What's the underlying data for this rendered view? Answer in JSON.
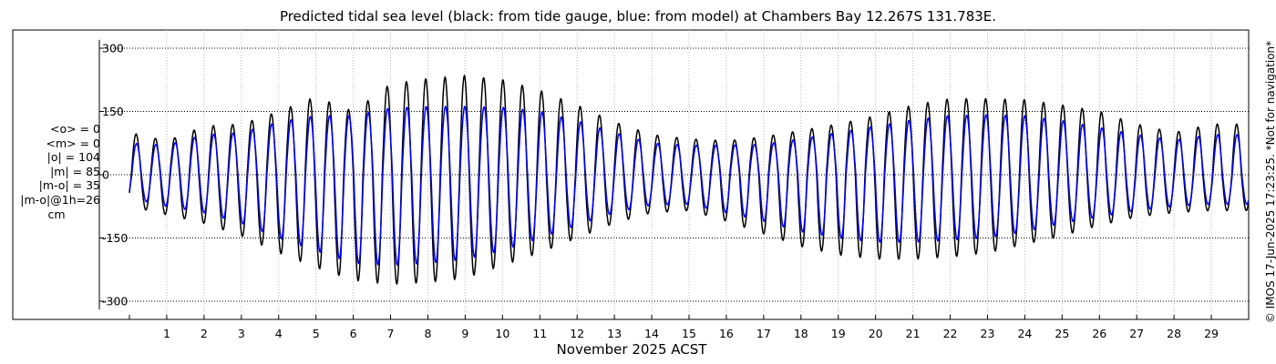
{
  "chart_data": {
    "type": "line",
    "title": "Predicted tidal sea level (black: from tide gauge, blue: from model) at Chambers Bay 12.267S 131.783E.",
    "xlabel": "November 2025 ACST",
    "ylabel": "",
    "ylim": [
      -320,
      320
    ],
    "yticks": [
      300,
      150,
      0,
      -150,
      -300
    ],
    "ytick_labels": [
      "300",
      "150",
      "0",
      "-150",
      "-300"
    ],
    "xlim": [
      0.0,
      30.0
    ],
    "xticks": [
      1,
      2,
      3,
      4,
      5,
      6,
      7,
      8,
      9,
      10,
      11,
      12,
      13,
      14,
      15,
      16,
      17,
      18,
      19,
      20,
      21,
      22,
      23,
      24,
      25,
      26,
      27,
      28,
      29
    ],
    "grid": true,
    "series": [
      {
        "color": "#000000",
        "peaks_highs": [
          100,
          80,
          115,
          120,
          150,
          185,
          150,
          215,
          228,
          235,
          225,
          200,
          165,
          125,
          95,
          85,
          80,
          90,
          105,
          120,
          140,
          165,
          180,
          180,
          178,
          165,
          150,
          120,
          100,
          120
        ],
        "peaks_lows": [
          -75,
          -95,
          -115,
          -145,
          -185,
          -220,
          -250,
          -260,
          -255,
          -245,
          -215,
          -185,
          -150,
          -115,
          -90,
          -85,
          -110,
          -140,
          -170,
          -190,
          -200,
          -200,
          -195,
          -185,
          -165,
          -145,
          -120,
          -100,
          -90,
          -85
        ]
      },
      {
        "color": "#0000ff",
        "peaks_highs": [
          75,
          70,
          95,
          100,
          125,
          140,
          140,
          158,
          162,
          162,
          160,
          150,
          128,
          100,
          75,
          70,
          70,
          72,
          85,
          100,
          115,
          130,
          140,
          142,
          140,
          128,
          112,
          95,
          82,
          95
        ],
        "peaks_lows": [
          -55,
          -75,
          -90,
          -115,
          -150,
          -180,
          -210,
          -215,
          -210,
          -200,
          -180,
          -150,
          -120,
          -90,
          -72,
          -70,
          -90,
          -110,
          -135,
          -150,
          -160,
          -160,
          -155,
          -150,
          -135,
          -115,
          -100,
          -85,
          -75,
          -70
        ]
      }
    ]
  },
  "stats": {
    "lines": [
      "<o> = 0",
      "<m> = 0",
      "|o| = 104",
      "|m| = 85",
      "|m-o| = 35",
      "|m-o|@1h=26",
      "cm"
    ]
  },
  "credit": "© IMOS 17-Jun-2025 17:23:25. *Not for navigation*"
}
